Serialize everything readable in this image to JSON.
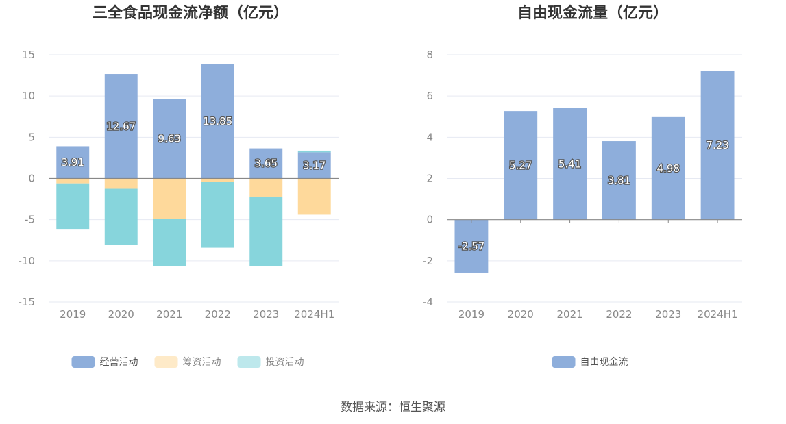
{
  "source_note": "数据来源：恒生聚源",
  "chart_data": [
    {
      "type": "bar",
      "stacked": true,
      "title": "三全食品现金流净额（亿元）",
      "categories": [
        "2019",
        "2020",
        "2021",
        "2022",
        "2023",
        "2024H1"
      ],
      "ylim": [
        -15,
        15
      ],
      "yticks": [
        15,
        10,
        5,
        0,
        -5,
        -10,
        -15
      ],
      "grid": true,
      "legend_position": "bottom-center",
      "series": [
        {
          "name": "经营活动",
          "color": "#8eaedb",
          "values": [
            3.91,
            12.67,
            9.63,
            13.85,
            3.65,
            3.17
          ],
          "labels": [
            "3.91",
            "12.67",
            "9.63",
            "13.85",
            "3.65",
            "3.17"
          ]
        },
        {
          "name": "筹资活动",
          "color": "#fed99b",
          "values": [
            -0.6,
            -1.25,
            -4.9,
            -0.4,
            -2.2,
            -4.4
          ]
        },
        {
          "name": "投资活动",
          "color": "#87d5dc",
          "values": [
            -5.6,
            -6.8,
            -5.7,
            -8.0,
            -8.4,
            0.2
          ]
        }
      ]
    },
    {
      "type": "bar",
      "title": "自由现金流量（亿元）",
      "categories": [
        "2019",
        "2020",
        "2021",
        "2022",
        "2023",
        "2024H1"
      ],
      "ylim": [
        -4,
        8
      ],
      "yticks": [
        8,
        6,
        4,
        2,
        0,
        -2,
        -4
      ],
      "grid": true,
      "legend_position": "bottom-center",
      "series": [
        {
          "name": "自由现金流",
          "color": "#8eaedb",
          "values": [
            -2.57,
            5.27,
            5.41,
            3.81,
            4.98,
            7.23
          ],
          "labels": [
            "-2.57",
            "5.27",
            "5.41",
            "3.81",
            "4.98",
            "7.23"
          ]
        }
      ]
    }
  ]
}
